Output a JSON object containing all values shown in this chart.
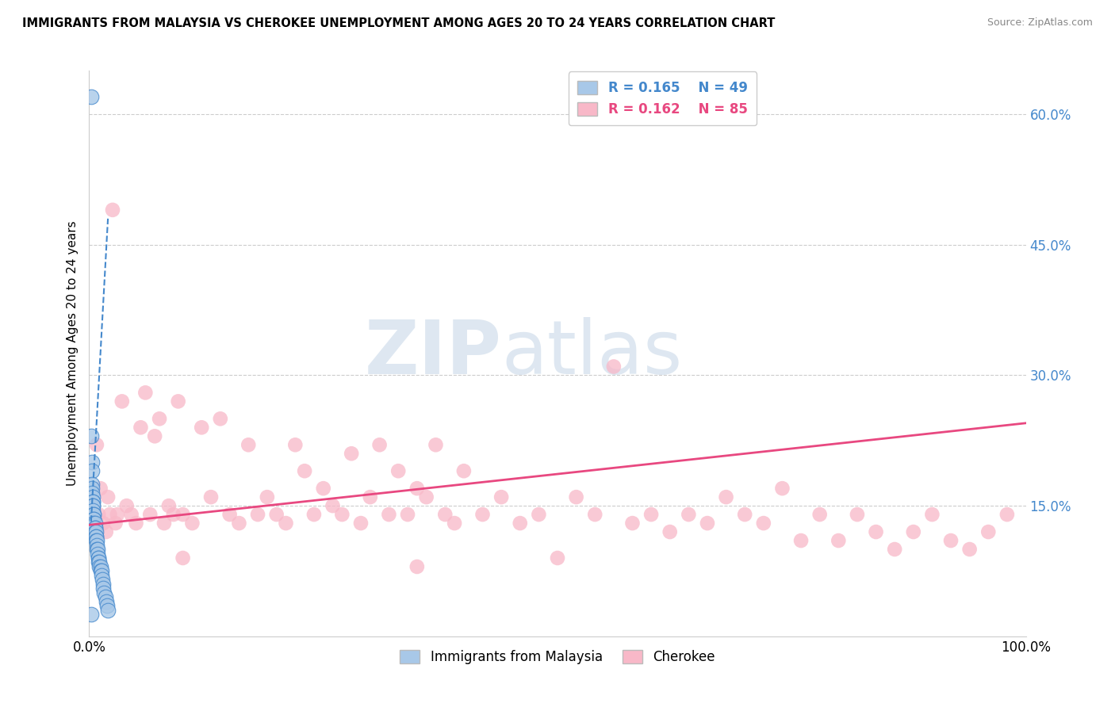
{
  "title": "IMMIGRANTS FROM MALAYSIA VS CHEROKEE UNEMPLOYMENT AMONG AGES 20 TO 24 YEARS CORRELATION CHART",
  "source": "Source: ZipAtlas.com",
  "ylabel": "Unemployment Among Ages 20 to 24 years",
  "xlim": [
    0.0,
    1.0
  ],
  "ylim": [
    0.0,
    0.65
  ],
  "xtick_positions": [
    0.0,
    1.0
  ],
  "xtick_labels": [
    "0.0%",
    "100.0%"
  ],
  "ytick_positions": [
    0.15,
    0.3,
    0.45,
    0.6
  ],
  "ytick_labels": [
    "15.0%",
    "30.0%",
    "45.0%",
    "60.0%"
  ],
  "legend_r1": "R = 0.165",
  "legend_n1": "N = 49",
  "legend_r2": "R = 0.162",
  "legend_n2": "N = 85",
  "color_blue": "#a8c8e8",
  "color_pink": "#f8b8c8",
  "color_trendline_blue": "#4488cc",
  "color_trendline_pink": "#e84880",
  "watermark_zip": "ZIP",
  "watermark_atlas": "atlas",
  "blue_x": [
    0.002,
    0.002,
    0.003,
    0.003,
    0.003,
    0.003,
    0.003,
    0.004,
    0.004,
    0.004,
    0.004,
    0.004,
    0.004,
    0.005,
    0.005,
    0.005,
    0.005,
    0.005,
    0.006,
    0.006,
    0.006,
    0.006,
    0.007,
    0.007,
    0.007,
    0.007,
    0.008,
    0.008,
    0.008,
    0.009,
    0.009,
    0.01,
    0.01,
    0.01,
    0.011,
    0.011,
    0.012,
    0.012,
    0.013,
    0.013,
    0.014,
    0.015,
    0.015,
    0.016,
    0.017,
    0.018,
    0.019,
    0.02,
    0.002
  ],
  "blue_y": [
    0.62,
    0.23,
    0.2,
    0.19,
    0.175,
    0.17,
    0.165,
    0.16,
    0.155,
    0.155,
    0.15,
    0.15,
    0.145,
    0.14,
    0.14,
    0.135,
    0.135,
    0.13,
    0.13,
    0.125,
    0.125,
    0.12,
    0.12,
    0.115,
    0.115,
    0.11,
    0.11,
    0.105,
    0.1,
    0.1,
    0.095,
    0.09,
    0.09,
    0.085,
    0.085,
    0.08,
    0.08,
    0.075,
    0.075,
    0.07,
    0.065,
    0.06,
    0.055,
    0.05,
    0.045,
    0.04,
    0.035,
    0.03,
    0.025
  ],
  "pink_x": [
    0.008,
    0.01,
    0.012,
    0.015,
    0.018,
    0.02,
    0.022,
    0.025,
    0.028,
    0.03,
    0.035,
    0.04,
    0.045,
    0.05,
    0.055,
    0.06,
    0.065,
    0.07,
    0.075,
    0.08,
    0.085,
    0.09,
    0.095,
    0.1,
    0.11,
    0.12,
    0.13,
    0.14,
    0.15,
    0.16,
    0.17,
    0.18,
    0.19,
    0.2,
    0.21,
    0.22,
    0.23,
    0.24,
    0.25,
    0.26,
    0.27,
    0.28,
    0.29,
    0.3,
    0.31,
    0.32,
    0.33,
    0.34,
    0.35,
    0.36,
    0.37,
    0.38,
    0.39,
    0.4,
    0.42,
    0.44,
    0.46,
    0.48,
    0.5,
    0.52,
    0.54,
    0.56,
    0.58,
    0.6,
    0.62,
    0.64,
    0.66,
    0.68,
    0.7,
    0.72,
    0.74,
    0.76,
    0.78,
    0.8,
    0.82,
    0.84,
    0.86,
    0.88,
    0.9,
    0.92,
    0.94,
    0.96,
    0.98,
    0.1,
    0.35
  ],
  "pink_y": [
    0.22,
    0.14,
    0.17,
    0.13,
    0.12,
    0.16,
    0.14,
    0.49,
    0.13,
    0.14,
    0.27,
    0.15,
    0.14,
    0.13,
    0.24,
    0.28,
    0.14,
    0.23,
    0.25,
    0.13,
    0.15,
    0.14,
    0.27,
    0.14,
    0.13,
    0.24,
    0.16,
    0.25,
    0.14,
    0.13,
    0.22,
    0.14,
    0.16,
    0.14,
    0.13,
    0.22,
    0.19,
    0.14,
    0.17,
    0.15,
    0.14,
    0.21,
    0.13,
    0.16,
    0.22,
    0.14,
    0.19,
    0.14,
    0.17,
    0.16,
    0.22,
    0.14,
    0.13,
    0.19,
    0.14,
    0.16,
    0.13,
    0.14,
    0.09,
    0.16,
    0.14,
    0.31,
    0.13,
    0.14,
    0.12,
    0.14,
    0.13,
    0.16,
    0.14,
    0.13,
    0.17,
    0.11,
    0.14,
    0.11,
    0.14,
    0.12,
    0.1,
    0.12,
    0.14,
    0.11,
    0.1,
    0.12,
    0.14,
    0.09,
    0.08
  ],
  "blue_trend_x": [
    0.002,
    0.02
  ],
  "blue_trend_y": [
    0.132,
    0.48
  ],
  "pink_trend_x": [
    0.0,
    1.0
  ],
  "pink_trend_y": [
    0.128,
    0.245
  ]
}
